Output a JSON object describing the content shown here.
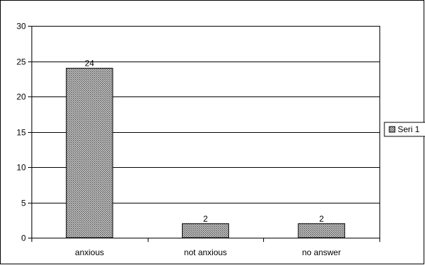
{
  "chart_data": {
    "type": "bar",
    "categories": [
      "anxious",
      "not anxious",
      "no answer"
    ],
    "series": [
      {
        "name": "Seri 1",
        "values": [
          24,
          2,
          2
        ],
        "data_labels": [
          "24",
          "2",
          "2"
        ]
      }
    ],
    "ylim": [
      0,
      30
    ],
    "yticks": [
      0,
      5,
      10,
      15,
      20,
      25,
      30
    ],
    "grid": true,
    "legend": "right",
    "colors": {
      "bar_fill": "#9a9a9a",
      "bar_edge": "#000000",
      "axis": "#000000",
      "grid": "#000000"
    }
  }
}
